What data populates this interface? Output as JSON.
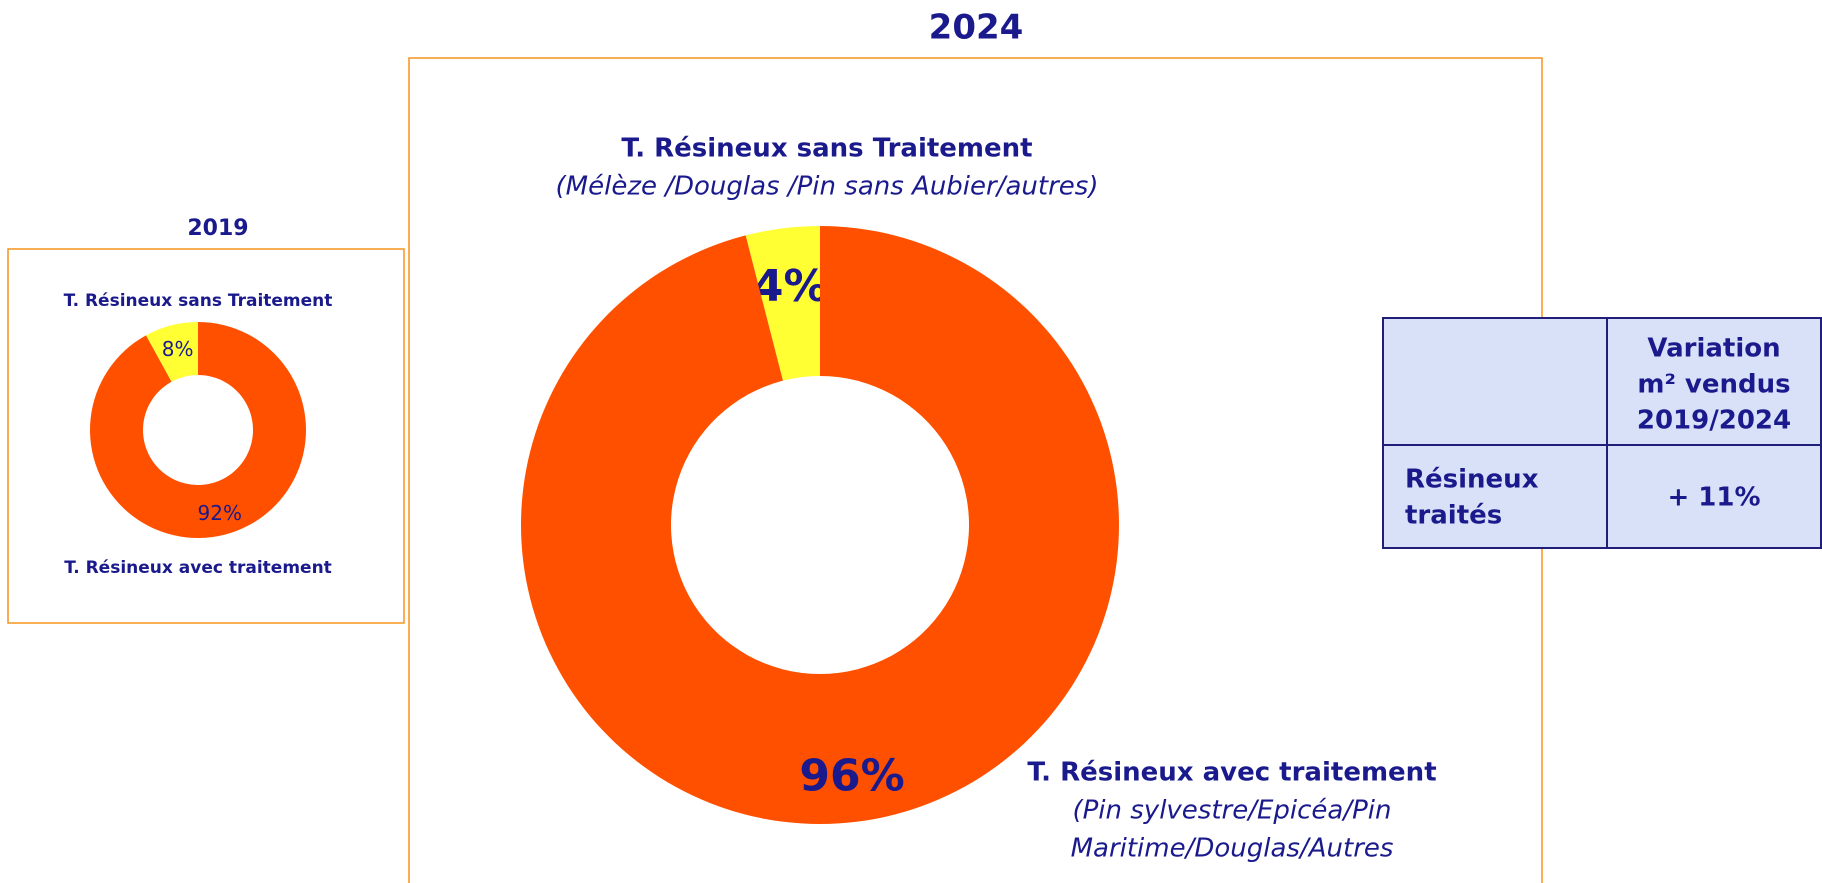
{
  "chart_data": [
    {
      "type": "donut",
      "title": "2019",
      "categories": [
        "T. Résineux sans Traitement",
        "T. Résineux avec traitement"
      ],
      "values": [
        8,
        92
      ],
      "value_labels": [
        "8%",
        "92%"
      ],
      "colors": [
        "#ffff33",
        "#ff5000"
      ]
    },
    {
      "type": "donut",
      "title": "2024",
      "categories": [
        "T. Résineux sans Traitement",
        "T. Résineux avec traitement"
      ],
      "category_notes": [
        [
          "(Mélèze /Douglas /Pin sans Aubier/autres)"
        ],
        [
          "(Pin sylvestre/Epicéa/Pin",
          "Maritime/Douglas/Autres"
        ]
      ],
      "values": [
        4,
        96
      ],
      "value_labels": [
        "4%",
        "96%"
      ],
      "colors": [
        "#ffff33",
        "#ff5000"
      ]
    }
  ],
  "table": {
    "header": [
      "Variation",
      "m² vendus",
      "2019/2024"
    ],
    "rows": [
      [
        [
          "Résineux",
          "traités"
        ],
        "+ 11%"
      ]
    ]
  }
}
